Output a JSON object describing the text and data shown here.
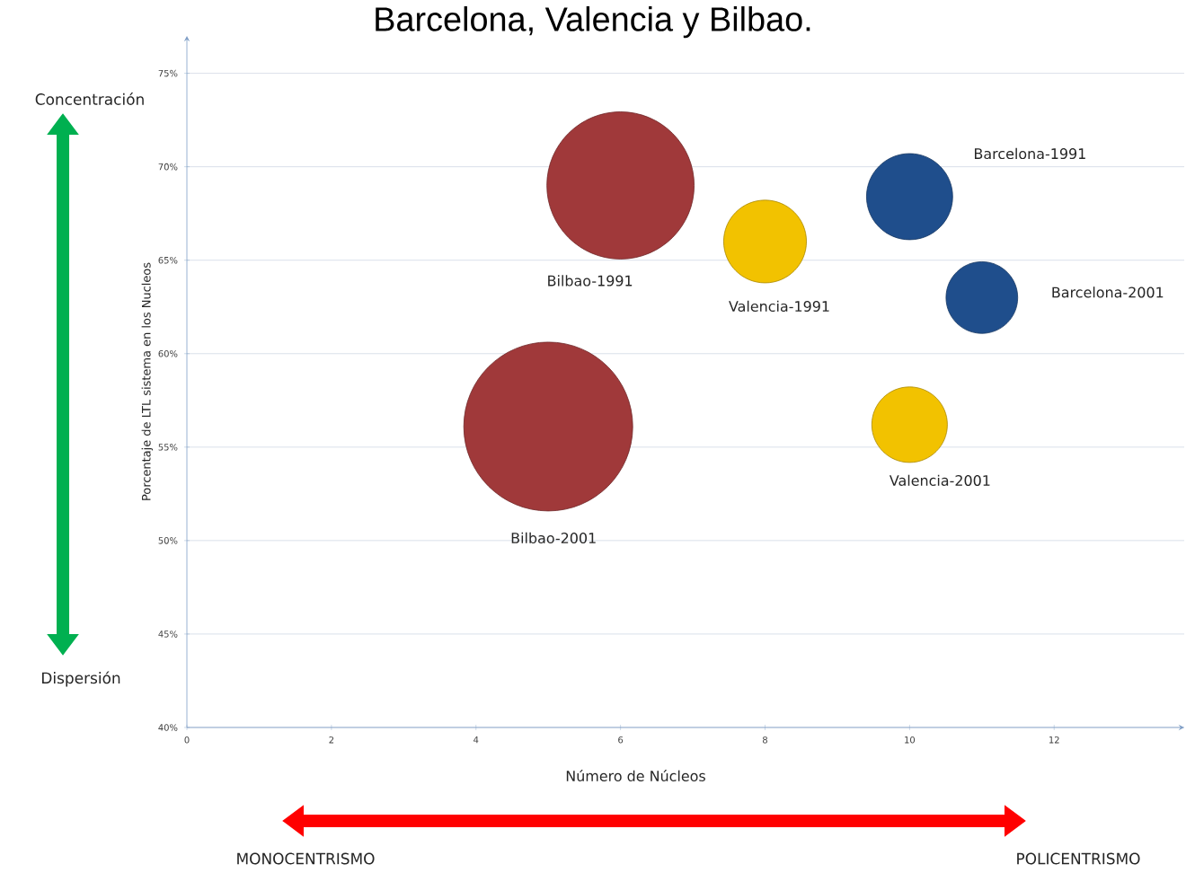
{
  "chart_data": {
    "type": "bubble",
    "title": "Barcelona, Valencia y Bilbao.",
    "xlabel": "Número de Núcleos",
    "ylabel": "Porcentaje de LTL sistema en los Nucleos",
    "x": [
      6,
      8,
      10,
      11,
      5,
      10
    ],
    "values": [
      69,
      66,
      68.4,
      63,
      56.1,
      56.2
    ],
    "sizes": [
      0.76,
      0.24,
      0.26,
      0.18,
      1,
      0.2
    ],
    "colors": [
      "#a0393a",
      "#f2c200",
      "#1f4e8c",
      "#1f4e8c",
      "#a0393a",
      "#f2c200"
    ],
    "xlim": [
      0,
      13.8
    ],
    "ylim": [
      40,
      77
    ],
    "xticks": [
      0,
      2,
      4,
      6,
      8,
      10,
      12
    ],
    "yticks": [
      {
        "value": 40,
        "label": "40%"
      },
      {
        "value": 45,
        "label": "45%"
      },
      {
        "value": 50,
        "label": "50%"
      },
      {
        "value": 55,
        "label": "55%"
      },
      {
        "value": 60,
        "label": "60%"
      },
      {
        "value": 65,
        "label": "65%"
      },
      {
        "value": 70,
        "label": "70%"
      },
      {
        "value": 75,
        "label": "75%"
      }
    ],
    "grid": "y",
    "annotations": [
      "Bilbao-1991",
      "Valencia-1991",
      "Barcelona-1991",
      "Barcelona-2001",
      "Bilbao-2001",
      "Valencia-2001",
      "Concentración",
      "Dispersión",
      "MONOCENTRISMO",
      "POLICENTRISMO"
    ]
  }
}
